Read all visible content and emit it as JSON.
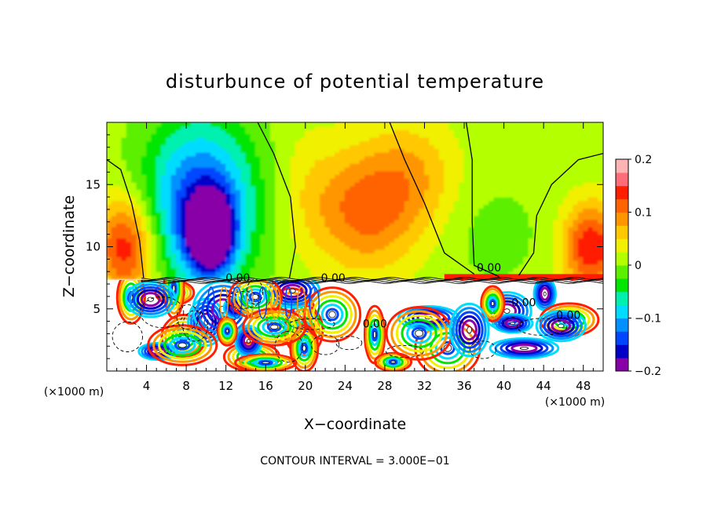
{
  "chart_data": {
    "type": "heatmap",
    "title": "disturbunce of potential temperature",
    "xlabel": "X−coordinate",
    "ylabel": "Z−coordinate",
    "x_unit_left": "(×1000 m)",
    "x_unit_right": "(×1000 m)",
    "footer": "CONTOUR INTERVAL = 3.000E−01",
    "xlim": [
      0,
      50
    ],
    "ylim": [
      0,
      20
    ],
    "x_ticks": [
      4,
      8,
      12,
      16,
      20,
      24,
      28,
      32,
      36,
      40,
      44,
      48
    ],
    "y_ticks": [
      5,
      10,
      15
    ],
    "colorbar": {
      "min": -0.2,
      "max": 0.2,
      "tick_values": [
        0.2,
        0.1,
        0,
        -0.1,
        -0.2
      ],
      "tick_labels": [
        "0.2",
        "0.1",
        "0",
        "−0.1",
        "−0.2"
      ],
      "colors": [
        "#8a00a8",
        "#0000c8",
        "#0046ff",
        "#0090ff",
        "#00dcff",
        "#00f0b0",
        "#00e600",
        "#5cf000",
        "#b4ff00",
        "#f0f000",
        "#ffc800",
        "#ff9600",
        "#ff6400",
        "#ff1e00",
        "#ff6e78",
        "#ffb4b4"
      ]
    },
    "contour_labels": [
      {
        "text": "0.00",
        "x": 13.2,
        "z": 7.2
      },
      {
        "text": "0.00",
        "x": 22.8,
        "z": 7.2
      },
      {
        "text": "0.00",
        "x": 38.5,
        "z": 8.0
      },
      {
        "text": "0.00",
        "x": 42.0,
        "z": 5.2
      },
      {
        "text": "0.00",
        "x": 46.5,
        "z": 4.2
      },
      {
        "text": "0.00",
        "x": 27.0,
        "z": 3.5
      }
    ],
    "blobs": [
      {
        "x": 9.5,
        "z": 13.5,
        "rx": 5.5,
        "rz": 6.5,
        "v": -0.16
      },
      {
        "x": 10.5,
        "z": 11.0,
        "rx": 2.2,
        "rz": 3.0,
        "v": -0.22
      },
      {
        "x": 2.0,
        "z": 10.0,
        "rx": 3.0,
        "rz": 4.0,
        "v": 0.14
      },
      {
        "x": 48.8,
        "z": 10.0,
        "rx": 2.8,
        "rz": 3.5,
        "v": 0.14
      },
      {
        "x": 26.0,
        "z": 13.0,
        "rx": 5.5,
        "rz": 5.0,
        "v": 0.1
      },
      {
        "x": 31.0,
        "z": 16.0,
        "rx": 4.5,
        "rz": 4.5,
        "v": 0.05
      },
      {
        "x": 39.0,
        "z": 11.0,
        "rx": 5.0,
        "rz": 4.0,
        "v": -0.02
      },
      {
        "x": 20.0,
        "z": 15.0,
        "rx": 3.0,
        "rz": 5.0,
        "v": 0.02
      }
    ]
  }
}
